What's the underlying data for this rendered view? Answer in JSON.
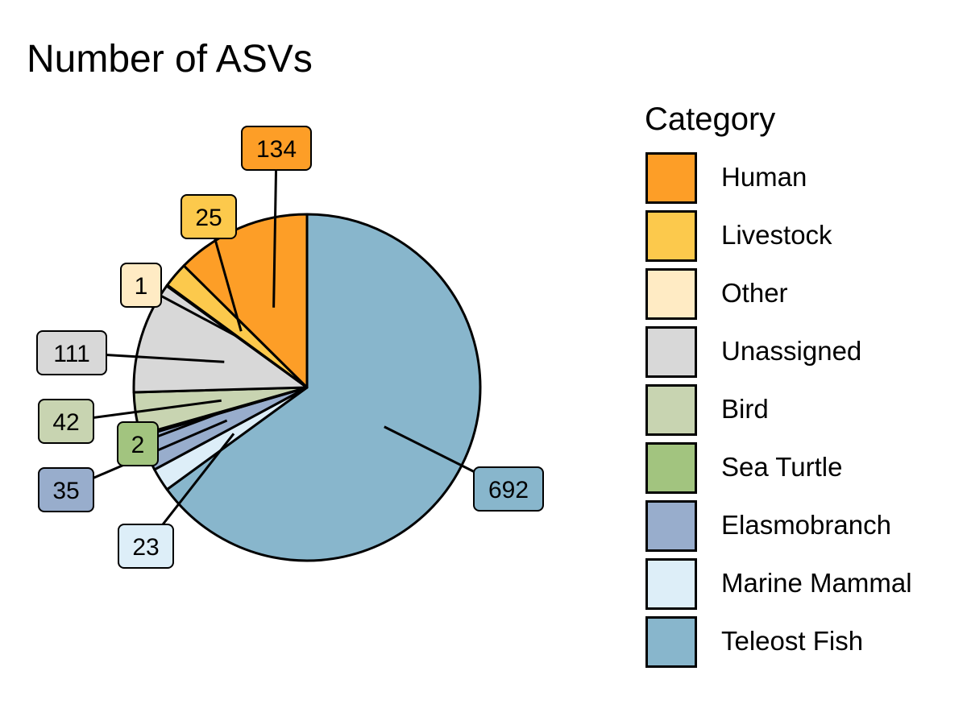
{
  "chart_data": {
    "type": "pie",
    "title": "Number of ASVs",
    "legend_title": "Category",
    "legend_position": "right",
    "slices": [
      {
        "label": "Teleost Fish",
        "value": 692,
        "color": "#88B6CC"
      },
      {
        "label": "Marine Mammal",
        "value": 23,
        "color": "#DDEEF8"
      },
      {
        "label": "Elasmobranch",
        "value": 35,
        "color": "#98ADCC"
      },
      {
        "label": "Sea Turtle",
        "value": 2,
        "color": "#A2C47F"
      },
      {
        "label": "Bird",
        "value": 42,
        "color": "#C8D4B1"
      },
      {
        "label": "Unassigned",
        "value": 111,
        "color": "#D8D8D8"
      },
      {
        "label": "Other",
        "value": 1,
        "color": "#FFEBC4"
      },
      {
        "label": "Livestock",
        "value": 25,
        "color": "#FCC94C"
      },
      {
        "label": "Human",
        "value": 134,
        "color": "#FD9E27"
      }
    ],
    "legend_order": [
      "Human",
      "Livestock",
      "Other",
      "Unassigned",
      "Bird",
      "Sea Turtle",
      "Elasmobranch",
      "Marine Mammal",
      "Teleost Fish"
    ]
  }
}
